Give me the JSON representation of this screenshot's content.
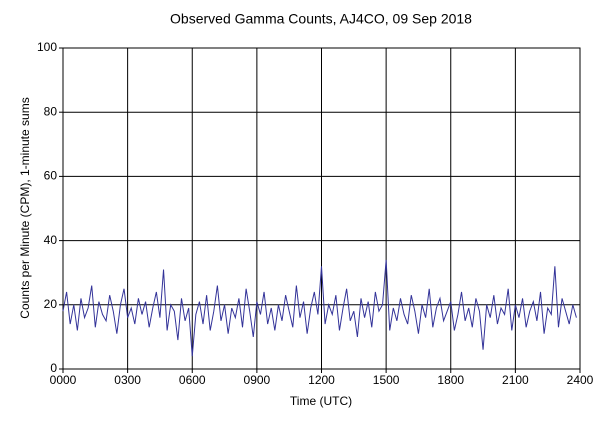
{
  "chart_data": {
    "type": "line",
    "title": "Observed Gamma Counts, AJ4CO, 09 Sep 2018",
    "xlabel": "Time (UTC)",
    "ylabel": "Counts per Minute (CPM), 1-minute sums",
    "color": "#333399",
    "grid": true,
    "xlim": [
      0,
      1440
    ],
    "ylim": [
      0,
      100
    ],
    "xticks": [
      {
        "value": 0,
        "label": "0000"
      },
      {
        "value": 180,
        "label": "0300"
      },
      {
        "value": 360,
        "label": "0600"
      },
      {
        "value": 540,
        "label": "0900"
      },
      {
        "value": 720,
        "label": "1200"
      },
      {
        "value": 900,
        "label": "1500"
      },
      {
        "value": 1080,
        "label": "1800"
      },
      {
        "value": 1260,
        "label": "2100"
      },
      {
        "value": 1440,
        "label": "2400"
      }
    ],
    "yticks": [
      0,
      20,
      40,
      60,
      80,
      100
    ],
    "x": [
      0,
      10,
      20,
      30,
      40,
      50,
      60,
      70,
      80,
      90,
      100,
      110,
      120,
      130,
      140,
      150,
      160,
      170,
      180,
      190,
      200,
      210,
      220,
      230,
      240,
      250,
      260,
      270,
      280,
      290,
      300,
      310,
      320,
      330,
      340,
      350,
      360,
      370,
      380,
      390,
      400,
      410,
      420,
      430,
      440,
      450,
      460,
      470,
      480,
      490,
      500,
      510,
      520,
      530,
      540,
      550,
      560,
      570,
      580,
      590,
      600,
      610,
      620,
      630,
      640,
      650,
      660,
      670,
      680,
      690,
      700,
      710,
      720,
      730,
      740,
      750,
      760,
      770,
      780,
      790,
      800,
      810,
      820,
      830,
      840,
      850,
      860,
      870,
      880,
      890,
      900,
      910,
      920,
      930,
      940,
      950,
      960,
      970,
      980,
      990,
      1000,
      1010,
      1020,
      1030,
      1040,
      1050,
      1060,
      1070,
      1080,
      1090,
      1100,
      1110,
      1120,
      1130,
      1140,
      1150,
      1160,
      1170,
      1180,
      1190,
      1200,
      1210,
      1220,
      1230,
      1240,
      1250,
      1260,
      1270,
      1280,
      1290,
      1300,
      1310,
      1320,
      1330,
      1340,
      1350,
      1360,
      1370,
      1380,
      1390,
      1400,
      1410,
      1420,
      1430
    ],
    "values": [
      18,
      24,
      14,
      20,
      12,
      22,
      16,
      19,
      26,
      13,
      21,
      17,
      15,
      23,
      18,
      11,
      20,
      25,
      16,
      19,
      14,
      22,
      17,
      21,
      13,
      19,
      24,
      16,
      31,
      12,
      20,
      18,
      9,
      22,
      15,
      19,
      4,
      17,
      21,
      14,
      23,
      12,
      18,
      26,
      15,
      20,
      11,
      19,
      16,
      22,
      13,
      25,
      18,
      10,
      21,
      17,
      24,
      14,
      19,
      12,
      20,
      15,
      23,
      18,
      13,
      26,
      16,
      21,
      11,
      19,
      24,
      17,
      32,
      14,
      20,
      17,
      23,
      12,
      19,
      25,
      15,
      18,
      10,
      22,
      16,
      21,
      13,
      24,
      18,
      20,
      34,
      12,
      19,
      15,
      22,
      17,
      14,
      23,
      18,
      11,
      20,
      16,
      25,
      13,
      19,
      22,
      15,
      18,
      21,
      12,
      17,
      24,
      15,
      19,
      13,
      22,
      18,
      6,
      20,
      16,
      23,
      14,
      19,
      17,
      25,
      12,
      20,
      16,
      22,
      13,
      18,
      21,
      15,
      24,
      11,
      19,
      17,
      32,
      13,
      22,
      18,
      14,
      20,
      16
    ]
  }
}
